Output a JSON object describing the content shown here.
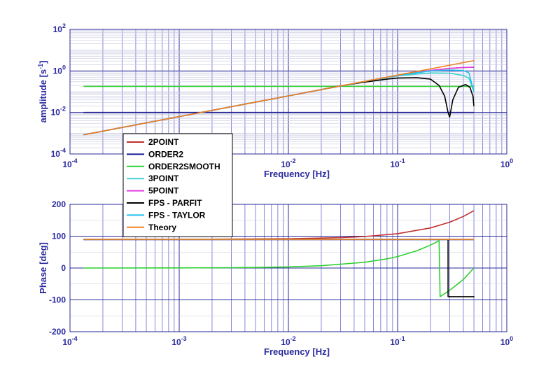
{
  "chart_data": [
    {
      "type": "line",
      "xlabel": "Frequency  [Hz]",
      "ylabel": "amplitude  [s",
      "ylabel_sup": "-1",
      "ylabel_close": "]",
      "xscale": "log",
      "yscale": "log",
      "xlim": [
        0.0001,
        1
      ],
      "ylim": [
        0.0001,
        100
      ],
      "x_ticks": [
        {
          "base": "10",
          "exp": "-4"
        },
        {
          "base": "10",
          "exp": "-3"
        },
        {
          "base": "10",
          "exp": "-2"
        },
        {
          "base": "10",
          "exp": "-1"
        },
        {
          "base": "10",
          "exp": "0"
        }
      ],
      "y_ticks": [
        {
          "base": "10",
          "exp": "-4"
        },
        {
          "base": "10",
          "exp": "-2"
        },
        {
          "base": "10",
          "exp": "0"
        },
        {
          "base": "10",
          "exp": "2"
        }
      ],
      "grid": true,
      "legend_position": "bottom-left",
      "series": [
        {
          "name": "2POINT",
          "color": "#c03030",
          "x": [
            0.000133,
            0.001,
            0.01,
            0.05,
            0.1,
            0.2,
            0.3,
            0.4,
            0.5
          ],
          "y": [
            0.00084,
            0.0063,
            0.063,
            0.31,
            0.59,
            1.04,
            1.32,
            1.45,
            1.5
          ]
        },
        {
          "name": "ORDER2",
          "color": "#1a1a90",
          "x": [
            0.000133,
            0.001,
            0.01,
            0.1,
            0.3,
            0.5
          ],
          "y": [
            0.01,
            0.01,
            0.01,
            0.01,
            0.01,
            0.01
          ]
        },
        {
          "name": "ORDER2SMOOTH",
          "color": "#30d030",
          "x": [
            0.000133,
            0.001,
            0.01,
            0.1,
            0.3,
            0.5
          ],
          "y": [
            0.18,
            0.18,
            0.18,
            0.18,
            0.18,
            0.18
          ]
        },
        {
          "name": "3POINT",
          "color": "#40d0d0",
          "x": [
            0.000133,
            0.001,
            0.01,
            0.05,
            0.1,
            0.2,
            0.3,
            0.4,
            0.45,
            0.5
          ],
          "y": [
            0.00084,
            0.0063,
            0.063,
            0.31,
            0.58,
            0.8,
            0.78,
            0.6,
            0.45,
            0.1
          ]
        },
        {
          "name": "5POINT",
          "color": "#e040e0",
          "x": [
            0.000133,
            0.001,
            0.01,
            0.05,
            0.1,
            0.2,
            0.3,
            0.4,
            0.5
          ],
          "y": [
            0.00084,
            0.0063,
            0.063,
            0.31,
            0.6,
            1.06,
            1.33,
            1.48,
            1.5
          ]
        },
        {
          "name": "FPS - PARFIT",
          "color": "#000000",
          "x": [
            0.000133,
            0.001,
            0.01,
            0.03,
            0.05,
            0.08,
            0.1,
            0.15,
            0.2,
            0.24,
            0.27,
            0.29,
            0.3,
            0.32,
            0.36,
            0.42,
            0.46,
            0.49,
            0.5
          ],
          "y": [
            0.00084,
            0.0063,
            0.063,
            0.19,
            0.29,
            0.4,
            0.45,
            0.47,
            0.4,
            0.2,
            0.06,
            0.01,
            0.006,
            0.04,
            0.16,
            0.22,
            0.16,
            0.06,
            0.02
          ]
        },
        {
          "name": "FPS - TAYLOR",
          "color": "#20c0f0",
          "x": [
            0.000133,
            0.001,
            0.01,
            0.05,
            0.1,
            0.2,
            0.3,
            0.4,
            0.45,
            0.5
          ],
          "y": [
            0.00084,
            0.0063,
            0.063,
            0.31,
            0.6,
            1.0,
            1.1,
            1.05,
            0.8,
            0.1
          ]
        },
        {
          "name": "Theory",
          "color": "#f08020",
          "x": [
            0.000133,
            0.001,
            0.01,
            0.1,
            0.5
          ],
          "y": [
            0.00084,
            0.0063,
            0.063,
            0.63,
            3.14
          ]
        }
      ]
    },
    {
      "type": "line",
      "xlabel": "Frequency  [Hz]",
      "ylabel": "Phase  [deg]",
      "xscale": "log",
      "yscale": "linear",
      "xlim": [
        0.0001,
        1
      ],
      "ylim": [
        -200,
        200
      ],
      "x_ticks": [
        {
          "base": "10",
          "exp": "-4"
        },
        {
          "base": "10",
          "exp": "-3"
        },
        {
          "base": "10",
          "exp": "-2"
        },
        {
          "base": "10",
          "exp": "-1"
        },
        {
          "base": "10",
          "exp": "0"
        }
      ],
      "y_tick_labels": [
        "-200",
        "-100",
        "0",
        "100",
        "200"
      ],
      "y_tick_values": [
        -200,
        -100,
        0,
        100,
        200
      ],
      "grid": true,
      "series": [
        {
          "name": "2POINT",
          "color": "#c03030",
          "x": [
            0.000133,
            0.001,
            0.01,
            0.03,
            0.05,
            0.1,
            0.2,
            0.3,
            0.4,
            0.5
          ],
          "y": [
            90,
            90.2,
            91.8,
            95.4,
            99,
            108,
            126,
            144,
            162,
            180
          ]
        },
        {
          "name": "ORDER2",
          "color": "#1a1a90",
          "x": [
            0.000133,
            0.01,
            0.5
          ],
          "y": [
            89,
            89,
            89
          ]
        },
        {
          "name": "ORDER2SMOOTH",
          "color": "#30d030",
          "x": [
            0.000133,
            0.001,
            0.003,
            0.005,
            0.01,
            0.02,
            0.05,
            0.08,
            0.1,
            0.15,
            0.2,
            0.24,
            0.245,
            0.3,
            0.4,
            0.5
          ],
          "y": [
            0,
            0.4,
            1.1,
            1.8,
            3.6,
            7.2,
            18,
            29,
            36,
            54,
            72,
            86,
            -90,
            -70,
            -36,
            0
          ]
        },
        {
          "name": "3POINT",
          "color": "#40d0d0",
          "x": [
            0.000133,
            0.5
          ],
          "y": [
            90,
            90
          ]
        },
        {
          "name": "5POINT",
          "color": "#e040e0",
          "x": [
            0.000133,
            0.5
          ],
          "y": [
            90,
            90
          ]
        },
        {
          "name": "FPS - PARFIT",
          "color": "#000000",
          "x": [
            0.000133,
            0.1,
            0.2,
            0.29,
            0.29,
            0.3,
            0.4,
            0.5,
            0.5
          ],
          "y": [
            90,
            90,
            90,
            90,
            -90,
            -90,
            -90,
            -90,
            -92
          ]
        },
        {
          "name": "FPS - TAYLOR",
          "color": "#20c0f0",
          "x": [
            0.000133,
            0.5
          ],
          "y": [
            90,
            90
          ]
        },
        {
          "name": "Theory",
          "color": "#f08020",
          "x": [
            0.000133,
            0.5
          ],
          "y": [
            90,
            90
          ]
        }
      ]
    }
  ]
}
